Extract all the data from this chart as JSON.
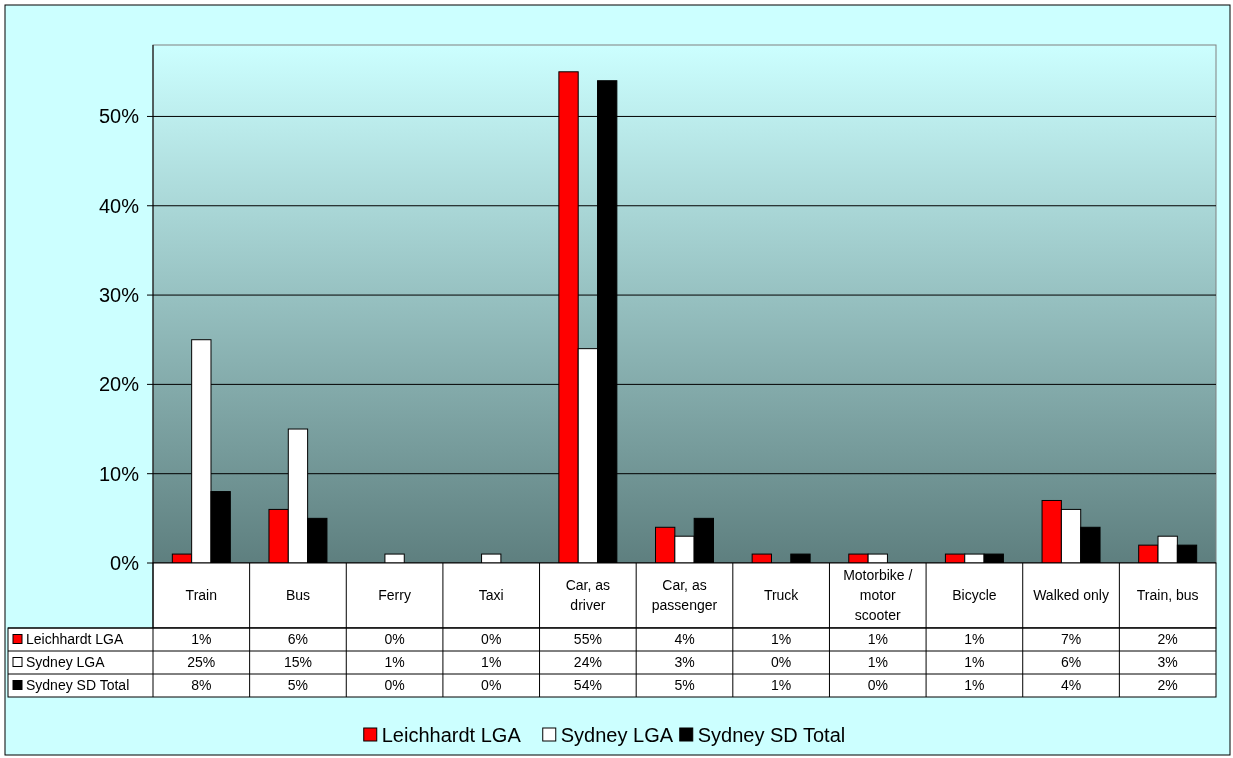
{
  "chart_data": {
    "type": "bar",
    "categories": [
      "Train",
      "Bus",
      "Ferry",
      "Taxi",
      "Car, as driver",
      "Car, as passenger",
      "Truck",
      "Motorbike / motor scooter",
      "Bicycle",
      "Walked only",
      "Train, bus"
    ],
    "series": [
      {
        "name": "Leichhardt LGA",
        "color": "#ff0000",
        "values": [
          1,
          6,
          0,
          0,
          55,
          4,
          1,
          1,
          1,
          7,
          2
        ],
        "value_labels": [
          "1%",
          "6%",
          "0%",
          "0%",
          "55%",
          "4%",
          "1%",
          "1%",
          "1%",
          "7%",
          "2%"
        ]
      },
      {
        "name": "Sydney LGA",
        "color": "#ffffff",
        "values": [
          25,
          15,
          1,
          1,
          24,
          3,
          0,
          1,
          1,
          6,
          3
        ],
        "value_labels": [
          "25%",
          "15%",
          "1%",
          "1%",
          "24%",
          "3%",
          "0%",
          "1%",
          "1%",
          "6%",
          "3%"
        ]
      },
      {
        "name": "Sydney SD Total",
        "color": "#000000",
        "values": [
          8,
          5,
          0,
          0,
          54,
          5,
          1,
          0,
          1,
          4,
          2
        ],
        "value_labels": [
          "8%",
          "5%",
          "0%",
          "0%",
          "54%",
          "5%",
          "1%",
          "0%",
          "1%",
          "4%",
          "2%"
        ]
      }
    ],
    "ylim": [
      0,
      58
    ],
    "yticks": [
      {
        "value": 0,
        "label": "0%"
      },
      {
        "value": 10,
        "label": "10%"
      },
      {
        "value": 20,
        "label": "20%"
      },
      {
        "value": 30,
        "label": "30%"
      },
      {
        "value": 40,
        "label": "40%"
      },
      {
        "value": 50,
        "label": "50%"
      }
    ],
    "grid": "y",
    "legend": "bottom"
  }
}
